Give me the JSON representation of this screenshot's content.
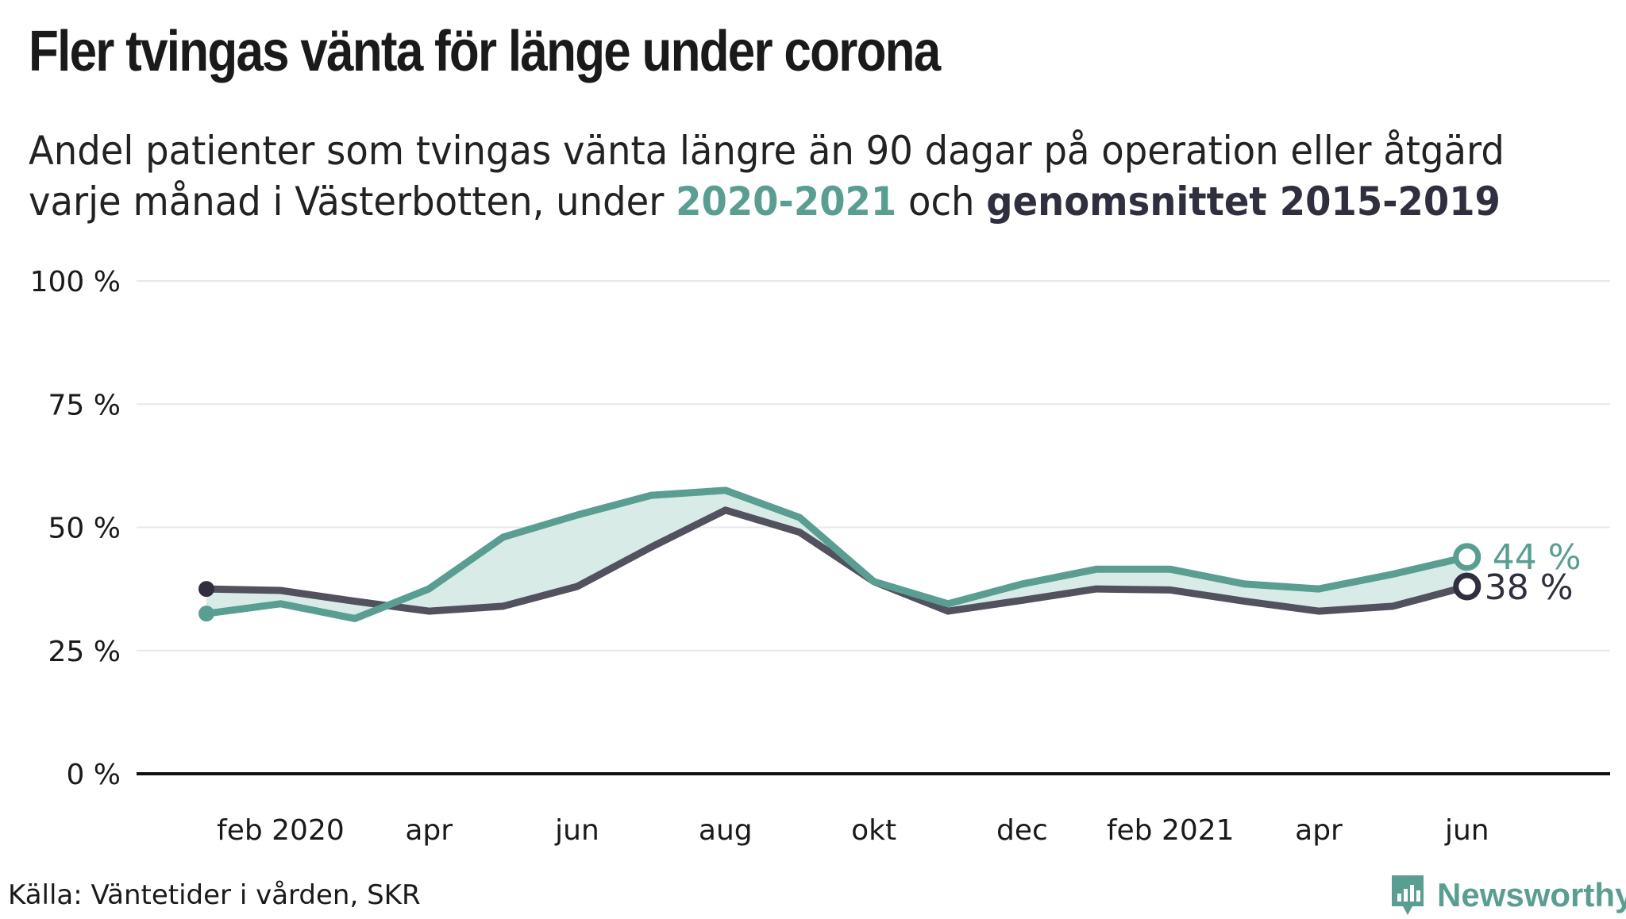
{
  "title": "Fler tvingas vänta för länge under corona",
  "subtitle": {
    "part1": "Andel patienter som tvingas vänta längre än 90 dagar på operation eller åtgärd varje månad i Västerbotten, under ",
    "highlight_recent": "2020-2021",
    "part2": " och ",
    "highlight_avg": "genomsnittet 2015-2019"
  },
  "source": "Källa: Väntetider i vården, SKR",
  "brand": {
    "name": "Newsworthy",
    "icon": "newsworthy-logo-icon"
  },
  "colors": {
    "recent": "#5a9e91",
    "average": "#52515e",
    "average_marker": "#2f2f3f",
    "fill": "#d9ebe7",
    "grid": "#e8e8e8",
    "axis": "#111111"
  },
  "chart_data": {
    "type": "line",
    "x": [
      "jan 2020",
      "feb 2020",
      "mar 2020",
      "apr 2020",
      "maj 2020",
      "jun 2020",
      "jul 2020",
      "aug 2020",
      "sep 2020",
      "okt 2020",
      "nov 2020",
      "dec 2020",
      "jan 2021",
      "feb 2021",
      "mar 2021",
      "apr 2021",
      "maj 2021",
      "jun 2021"
    ],
    "series": [
      {
        "name": "2020-2021",
        "values": [
          32.5,
          34.5,
          31.5,
          37.5,
          48,
          52.5,
          56.5,
          57.5,
          52,
          39,
          34.5,
          38.5,
          41.5,
          41.5,
          38.5,
          37.5,
          40.5,
          44
        ]
      },
      {
        "name": "genomsnittet 2015-2019",
        "values": [
          37.5,
          37.2,
          35,
          33,
          34,
          38,
          46,
          53.5,
          49,
          39,
          33,
          35.2,
          37.5,
          37.3,
          35,
          33,
          34,
          38
        ]
      }
    ],
    "xtick_labels": [
      {
        "index": 1,
        "label": "feb 2020"
      },
      {
        "index": 3,
        "label": "apr"
      },
      {
        "index": 5,
        "label": "jun"
      },
      {
        "index": 7,
        "label": "aug"
      },
      {
        "index": 9,
        "label": "okt"
      },
      {
        "index": 11,
        "label": "dec"
      },
      {
        "index": 13,
        "label": "feb 2021"
      },
      {
        "index": 15,
        "label": "apr"
      },
      {
        "index": 17,
        "label": "jun"
      }
    ],
    "yticks": [
      0,
      25,
      50,
      75,
      100
    ],
    "ytick_labels": [
      "0 %",
      "25 %",
      "50 %",
      "75 %",
      "100 %"
    ],
    "ylim": [
      0,
      100
    ],
    "end_labels": {
      "recent": "44 %",
      "average": "38 %"
    },
    "grid": true
  }
}
